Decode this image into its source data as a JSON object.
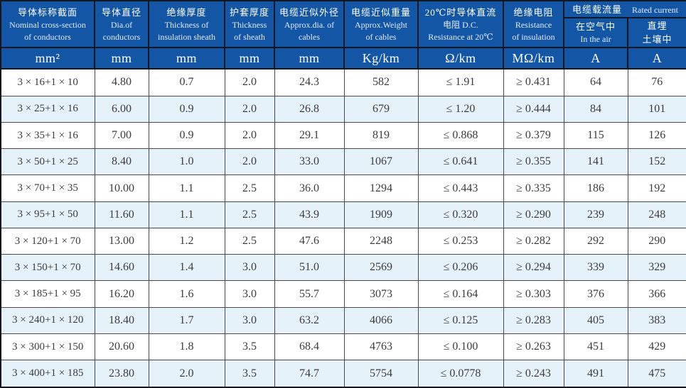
{
  "table": {
    "title_semantic": "cable specification table",
    "columns": [
      {
        "lines": [
          "导体标称截面",
          "Nominal cross-section",
          "of conductors"
        ],
        "unit": "mm²"
      },
      {
        "lines": [
          "导体直径",
          "Dia.of",
          "conductors"
        ],
        "unit": "mm"
      },
      {
        "lines": [
          "绝缘厚度",
          "Thickness of",
          "insulation sheath"
        ],
        "unit": "mm"
      },
      {
        "lines": [
          "护套厚度",
          "Thickness",
          "of sheath"
        ],
        "unit": "mm"
      },
      {
        "lines": [
          "电缆近似外径",
          "Approx.dia. of",
          "cables"
        ],
        "unit": "mm"
      },
      {
        "lines": [
          "电缆近似重量",
          "Approx.Weight",
          "of cables"
        ],
        "unit": "Kg/km"
      },
      {
        "lines": [
          "20℃时导体直流",
          "电阻 D.C.",
          "Resistance at 20℃"
        ],
        "unit": "Ω/km"
      },
      {
        "lines": [
          "绝缘电阻",
          "Resistance",
          "of insulation"
        ],
        "unit": "MΩ/km"
      }
    ],
    "rated_group": {
      "zh": "电缆载流量",
      "en": "Rated current",
      "sub": [
        {
          "lines": [
            "在空气中",
            "In the air"
          ],
          "unit": "A"
        },
        {
          "lines": [
            "直埋",
            "土壤中"
          ],
          "unit": "A"
        }
      ]
    },
    "rows": [
      [
        "3 × 16+1 × 10",
        "4.80",
        "0.7",
        "2.0",
        "24.3",
        "582",
        "≤ 1.91",
        "≥ 0.431",
        "64",
        "76"
      ],
      [
        "3 × 25+1 × 16",
        "6.00",
        "0.9",
        "2.0",
        "26.8",
        "679",
        "≤ 1.20",
        "≥ 0.444",
        "84",
        "101"
      ],
      [
        "3 × 35+1 × 16",
        "7.00",
        "0.9",
        "2.0",
        "29.1",
        "819",
        "≤ 0.868",
        "≥ 0.379",
        "115",
        "126"
      ],
      [
        "3 × 50+1 × 25",
        "8.40",
        "1.0",
        "2.0",
        "33.0",
        "1067",
        "≤ 0.641",
        "≥ 0.355",
        "141",
        "152"
      ],
      [
        "3 × 70+1 × 35",
        "10.00",
        "1.1",
        "2.5",
        "36.0",
        "1294",
        "≤ 0.443",
        "≥ 0.335",
        "186",
        "192"
      ],
      [
        "3 × 95+1 × 50",
        "11.60",
        "1.1",
        "2.5",
        "43.9",
        "1909",
        "≤ 0.320",
        "≥ 0.290",
        "239",
        "248"
      ],
      [
        "3 × 120+1 × 70",
        "13.00",
        "1.2",
        "2.5",
        "47.6",
        "2248",
        "≤ 0.253",
        "≥ 0.282",
        "292",
        "290"
      ],
      [
        "3 × 150+1 × 70",
        "14.60",
        "1.4",
        "3.0",
        "51.0",
        "2569",
        "≤ 0.206",
        "≥ 0.294",
        "339",
        "329"
      ],
      [
        "3 × 185+1 × 95",
        "16.20",
        "1.6",
        "3.0",
        "55.7",
        "3073",
        "≤ 0.164",
        "≥ 0.303",
        "376",
        "366"
      ],
      [
        "3 × 240+1 × 120",
        "18.40",
        "1.7",
        "3.0",
        "63.2",
        "4066",
        "≤ 0.125",
        "≥ 0.283",
        "405",
        "383"
      ],
      [
        "3 × 300+1 × 150",
        "20.60",
        "1.8",
        "3.5",
        "68.4",
        "4763",
        "≤ 0.100",
        "≥ 0.263",
        "451",
        "429"
      ],
      [
        "3 × 400+1 × 185",
        "23.80",
        "2.0",
        "3.5",
        "74.7",
        "5754",
        "≤ 0.0778",
        "≥ 0.243",
        "491",
        "475"
      ]
    ],
    "colors": {
      "header_bg": "#1356a5",
      "alt_row_bg": "#e6f2fa",
      "grid_line": "#4a4a4a",
      "header_line": "#15171f",
      "header_text": "#ffffff",
      "data_text": "#3c3c3c"
    }
  }
}
